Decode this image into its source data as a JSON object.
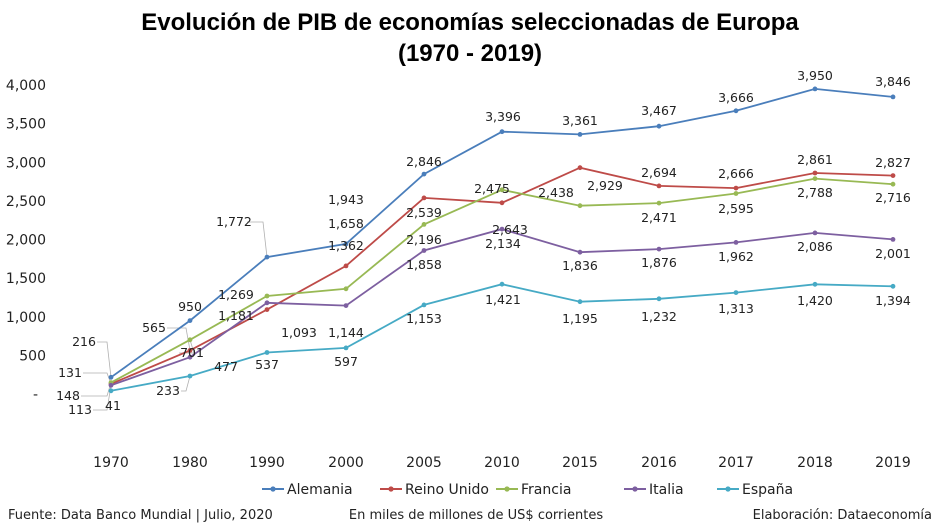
{
  "chart_data": {
    "type": "line",
    "title": "Evolución de PIB de economías seleccionadas de Europa",
    "subtitle": "(1970 - 2019)",
    "categories": [
      "1970",
      "1980",
      "1990",
      "2000",
      "2005",
      "2010",
      "2015",
      "2016",
      "2017",
      "2018",
      "2019"
    ],
    "y_ticks": [
      "-",
      "500",
      "1,000",
      "1,500",
      "2,000",
      "2,500",
      "3,000",
      "3,500",
      "4,000"
    ],
    "ylim": [
      0,
      4000
    ],
    "grid": false,
    "legend": "bottom",
    "series": [
      {
        "name": "Alemania",
        "color": "#4a7ebb",
        "values": [
          216,
          950,
          1772,
          1943,
          2846,
          3396,
          3361,
          3467,
          3666,
          3950,
          3846
        ],
        "labels": [
          "216",
          "950",
          "1,772",
          "1,943",
          "2,846",
          "3,396",
          "3,361",
          "3,467",
          "3,666",
          "3,950",
          "3,846"
        ]
      },
      {
        "name": "Reino Unido",
        "color": "#be4b48",
        "values": [
          131,
          565,
          1093,
          1658,
          2539,
          2475,
          2929,
          2694,
          2666,
          2861,
          2827
        ],
        "labels": [
          "131",
          "565",
          "1,093",
          "1,658",
          "2,539",
          "2,475",
          "2,929",
          "2,694",
          "2,666",
          "2,861",
          "2,827"
        ]
      },
      {
        "name": "Francia",
        "color": "#98b954",
        "values": [
          148,
          701,
          1269,
          1362,
          2196,
          2643,
          2438,
          2471,
          2595,
          2788,
          2716
        ],
        "labels": [
          "148",
          "701",
          "1,269",
          "1,362",
          "2,196",
          "2,643",
          "2,438",
          "2,471",
          "2,595",
          "2,788",
          "2,716"
        ]
      },
      {
        "name": "Italia",
        "color": "#7d5fa0",
        "values": [
          113,
          477,
          1181,
          1144,
          1858,
          2134,
          1836,
          1876,
          1962,
          2086,
          2001
        ],
        "labels": [
          "113",
          "477",
          "1,181",
          "1,144",
          "1,858",
          "2,134",
          "1,836",
          "1,876",
          "1,962",
          "2,086",
          "2,001"
        ]
      },
      {
        "name": "España",
        "color": "#46aac5",
        "values": [
          41,
          233,
          537,
          597,
          1153,
          1421,
          1195,
          1232,
          1313,
          1420,
          1394
        ],
        "labels": [
          "41",
          "233",
          "537",
          "597",
          "1,153",
          "1,421",
          "1,195",
          "1,232",
          "1,313",
          "1,420",
          "1,394"
        ]
      }
    ]
  },
  "footer": {
    "source": "Fuente: Data Banco Mundial | Julio, 2020",
    "units": "En miles de millones de US$ corrientes",
    "credit": "Elaboración: Dataeconomía"
  }
}
